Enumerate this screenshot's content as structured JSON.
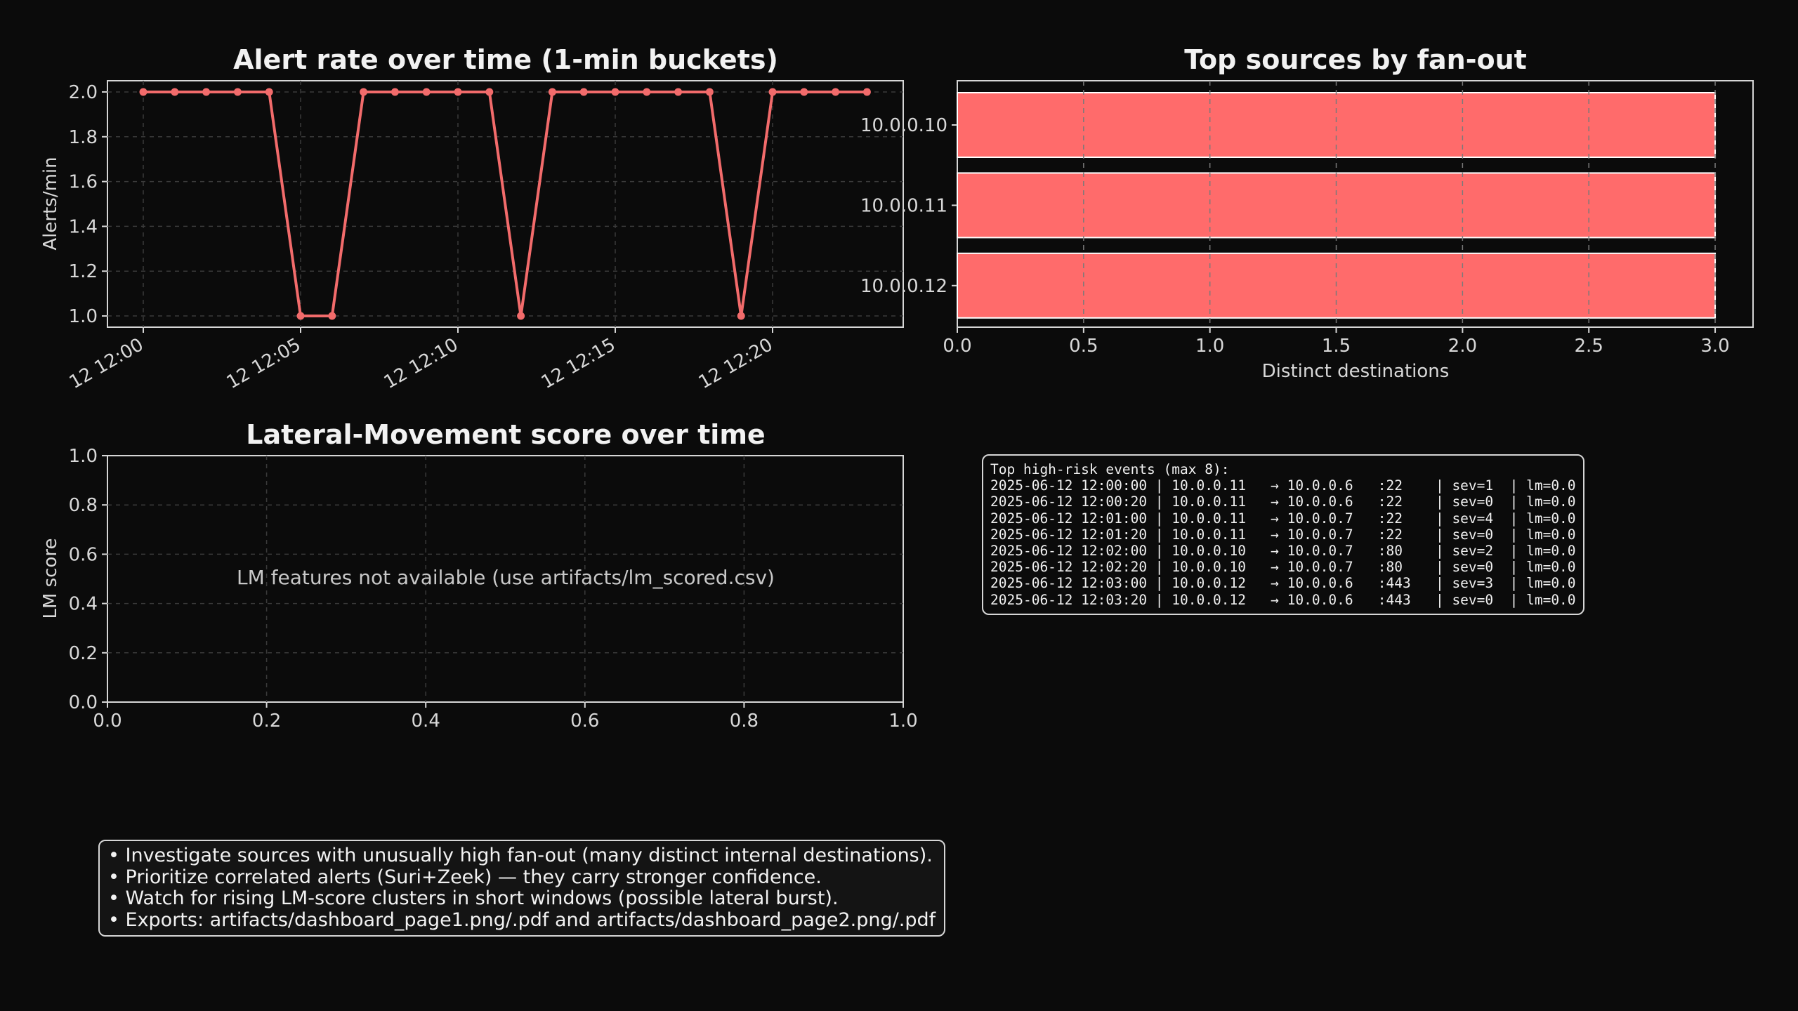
{
  "colors": {
    "background": "#0b0b0b",
    "accent": "#f26b6b",
    "bar": "#ff6b6b",
    "frame": "#d6d6d6"
  },
  "chart_data": [
    {
      "type": "line",
      "title": "Alert rate over time (1-min buckets)",
      "xlabel": "",
      "ylabel": "Alerts/min",
      "x_tick_labels": [
        "12 12:00",
        "12 12:05",
        "12 12:10",
        "12 12:15",
        "12 12:20"
      ],
      "y_tick_labels": [
        "1.0",
        "1.2",
        "1.4",
        "1.6",
        "1.8",
        "2.0"
      ],
      "x": [
        "12:00",
        "12:01",
        "12:02",
        "12:03",
        "12:04",
        "12:05",
        "12:06",
        "12:07",
        "12:08",
        "12:09",
        "12:10",
        "12:11",
        "12:12",
        "12:13",
        "12:14",
        "12:15",
        "12:16",
        "12:17",
        "12:18",
        "12:19",
        "12:20",
        "12:21",
        "12:22",
        "12:23"
      ],
      "values": [
        2,
        2,
        2,
        2,
        2,
        1,
        1,
        2,
        2,
        2,
        2,
        2,
        1,
        2,
        2,
        2,
        2,
        2,
        2,
        1,
        2,
        2,
        2,
        2
      ],
      "ylim": [
        0.95,
        2.05
      ],
      "grid": true
    },
    {
      "type": "bar",
      "orientation": "horizontal",
      "title": "Top sources by fan-out",
      "xlabel": "Distinct destinations",
      "ylabel": "",
      "categories": [
        "10.0.0.10",
        "10.0.0.11",
        "10.0.0.12"
      ],
      "values": [
        3,
        3,
        3
      ],
      "x_tick_labels": [
        "0.0",
        "0.5",
        "1.0",
        "1.5",
        "2.0",
        "2.5",
        "3.0"
      ],
      "xlim": [
        0,
        3.15
      ],
      "grid": true
    },
    {
      "type": "line",
      "title": "Lateral-Movement score over time",
      "xlabel": "",
      "ylabel": "LM score",
      "x_tick_labels": [
        "0.0",
        "0.2",
        "0.4",
        "0.6",
        "0.8",
        "1.0"
      ],
      "y_tick_labels": [
        "0.0",
        "0.2",
        "0.4",
        "0.6",
        "0.8",
        "1.0"
      ],
      "xlim": [
        0,
        1
      ],
      "ylim": [
        0,
        1
      ],
      "annotation": "LM features not available (use artifacts/lm_scored.csv)",
      "series": [],
      "grid": true
    }
  ],
  "events_panel": {
    "lines": [
      "Top high-risk events (max 8):",
      "2025-06-12 12:00:00 | 10.0.0.11   → 10.0.0.6   :22    | sev=1  | lm=0.0",
      "2025-06-12 12:00:20 | 10.0.0.11   → 10.0.0.6   :22    | sev=0  | lm=0.0",
      "2025-06-12 12:01:00 | 10.0.0.11   → 10.0.0.7   :22    | sev=4  | lm=0.0",
      "2025-06-12 12:01:20 | 10.0.0.11   → 10.0.0.7   :22    | sev=0  | lm=0.0",
      "2025-06-12 12:02:00 | 10.0.0.10   → 10.0.0.7   :80    | sev=2  | lm=0.0",
      "2025-06-12 12:02:20 | 10.0.0.10   → 10.0.0.7   :80    | sev=0  | lm=0.0",
      "2025-06-12 12:03:00 | 10.0.0.12   → 10.0.0.6   :443   | sev=3  | lm=0.0",
      "2025-06-12 12:03:20 | 10.0.0.12   → 10.0.0.6   :443   | sev=0  | lm=0.0"
    ]
  },
  "tips_panel": {
    "lines": [
      "• Investigate sources with unusually high fan-out (many distinct internal destinations).",
      "• Prioritize correlated alerts (Suri+Zeek) — they carry stronger confidence.",
      "• Watch for rising LM-score clusters in short windows (possible lateral burst).",
      "• Exports: artifacts/dashboard_page1.png/.pdf and artifacts/dashboard_page2.png/.pdf"
    ]
  }
}
